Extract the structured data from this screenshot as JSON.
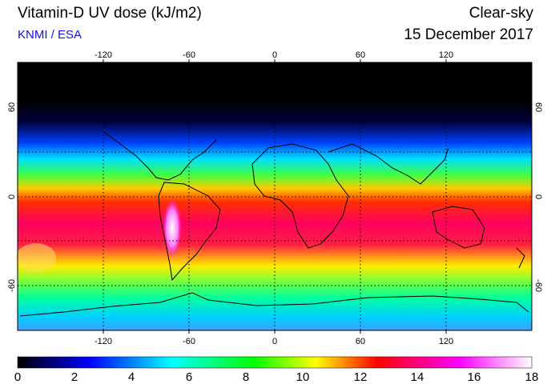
{
  "header": {
    "title": "Vitamin-D UV dose (kJ/m2)",
    "credit": "KNMI / ESA",
    "condition": "Clear-sky",
    "date": "15 December 2017"
  },
  "map": {
    "projection": "equirectangular",
    "lon_range": [
      -180,
      180
    ],
    "lat_range": [
      -90,
      90
    ],
    "grid": true,
    "lon_ticks": [
      "-120",
      "-60",
      "0",
      "60",
      "120"
    ],
    "lat_ticks": [
      "60",
      "0",
      "-60"
    ],
    "right_lat_ticks": [
      "60",
      "0",
      "-60"
    ]
  },
  "colorbar": {
    "min": 0,
    "max": 18,
    "labels": [
      "0",
      "2",
      "4",
      "6",
      "8",
      "10",
      "12",
      "14",
      "16",
      "18"
    ],
    "colors": [
      "#000000",
      "#0000ff",
      "#00ffff",
      "#00ff00",
      "#ffff00",
      "#ff0000",
      "#ff00ff",
      "#ffffff"
    ]
  }
}
